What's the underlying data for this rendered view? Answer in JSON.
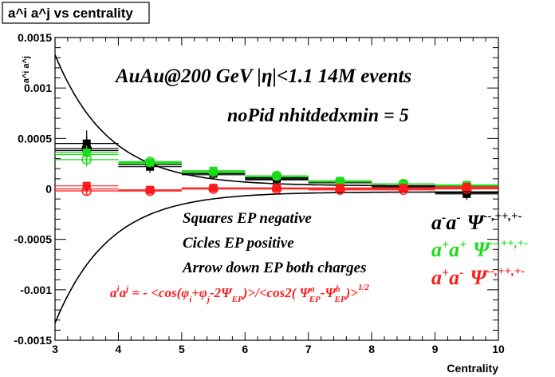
{
  "title": "a^i a^j vs centrality",
  "colors": {
    "black": "#000000",
    "green": "#1bdc1b",
    "red": "#ff1a1a",
    "frame": "#000000",
    "background": "#ffffff"
  },
  "annotations": {
    "header1": "AuAu@200 GeV |η|<1.1 14M events",
    "header2": "noPid nhitdedxmin = 5",
    "squares": "Squares EP negative",
    "circles": "Cicles EP positive",
    "arrows": "Arrow down EP both charges",
    "formula": "a^i a^j = - <cos(φ_i+φ_j-2Ψ_EP)>/<cos2(Ψ^a_EP-Ψ^b_EP)>^(1/2)"
  },
  "legend": [
    {
      "label": "a⁻a⁻ Ψ⁻⁻,⁺⁺,⁺⁻",
      "color": "#000000"
    },
    {
      "label": "a⁺a⁺ Ψ⁻⁻,⁺⁺,⁺⁻",
      "color": "#1bdc1b"
    },
    {
      "label": "a⁺a⁻ Ψ⁻⁻,⁺⁺,⁺⁻",
      "color": "#ff1a1a"
    }
  ],
  "chart_data": {
    "type": "scatter",
    "title": "a^i a^j vs centrality",
    "xlabel": "Centrality",
    "ylabel": "a^i a^j",
    "xlim": [
      3,
      10
    ],
    "ylim": [
      -0.0015,
      0.0015
    ],
    "x_ticks": [
      3,
      4,
      5,
      6,
      7,
      8,
      9,
      10
    ],
    "y_ticks": [
      -0.0015,
      -0.001,
      -0.0005,
      0,
      0.0005,
      0.001,
      0.0015
    ],
    "y_tick_labels": [
      "-0.0015",
      "-0.001",
      "-0.0005",
      "0",
      "0.0005",
      "0.001",
      "0.0015"
    ],
    "x": [
      3.5,
      4.5,
      5.5,
      6.5,
      7.5,
      8.5,
      9.5
    ],
    "series": [
      {
        "name": "a⁻a⁻ Squares EP negative",
        "color": "#000000",
        "marker": "square",
        "values": [
          0.00045,
          0.00022,
          0.00015,
          0.0001,
          6e-05,
          2e-05,
          -5e-05
        ],
        "errors": [
          0.00013,
          6e-05,
          4e-05,
          3e-05,
          3e-05,
          3e-05,
          6e-05
        ]
      },
      {
        "name": "a⁻a⁻ Cicles EP positive",
        "color": "#000000",
        "marker": "circle",
        "values": [
          0.0004,
          0.00025,
          0.00016,
          0.00011,
          7e-05,
          3e-05,
          -3e-05
        ],
        "errors": [
          0.00012,
          5e-05,
          4e-05,
          3e-05,
          3e-05,
          3e-05,
          6e-05
        ]
      },
      {
        "name": "a⁻a⁻ Arrow down EP both charges",
        "color": "#000000",
        "marker": "arrow",
        "values": [
          0.00038,
          0.00024,
          0.00014,
          9e-05,
          6e-05,
          2e-05,
          -4e-05
        ],
        "errors": [
          0.00012,
          5e-05,
          4e-05,
          3e-05,
          3e-05,
          3e-05,
          6e-05
        ]
      },
      {
        "name": "a⁺a⁺ Squares EP negative",
        "color": "#1bdc1b",
        "marker": "square",
        "values": [
          0.00036,
          0.00026,
          0.00018,
          0.00013,
          8e-05,
          5e-05,
          4e-05
        ],
        "errors": [
          7e-05,
          4e-05,
          3e-05,
          3e-05,
          3e-05,
          3e-05,
          4e-05
        ]
      },
      {
        "name": "a⁺a⁺ Cicles EP positive",
        "color": "#1bdc1b",
        "marker": "circle",
        "values": [
          0.00029,
          0.00027,
          0.00017,
          0.00013,
          7e-05,
          5e-05,
          3e-05
        ],
        "errors": [
          7e-05,
          4e-05,
          3e-05,
          3e-05,
          3e-05,
          3e-05,
          4e-05
        ]
      },
      {
        "name": "a⁺a⁺ Arrow down EP both charges",
        "color": "#1bdc1b",
        "marker": "arrow",
        "values": [
          0.00034,
          0.00025,
          0.00016,
          0.00012,
          7e-05,
          5e-05,
          3e-05
        ],
        "errors": [
          7e-05,
          4e-05,
          3e-05,
          3e-05,
          3e-05,
          3e-05,
          4e-05
        ]
      },
      {
        "name": "a⁺a⁻ Squares EP negative",
        "color": "#ff1a1a",
        "marker": "square",
        "values": [
          3e-05,
          -1e-05,
          1e-05,
          1e-05,
          1e-05,
          1e-05,
          2e-05
        ],
        "errors": [
          4e-05,
          2e-05,
          2e-05,
          2e-05,
          2e-05,
          2e-05,
          3e-05
        ]
      },
      {
        "name": "a⁺a⁻ Cicles EP positive",
        "color": "#ff1a1a",
        "marker": "circle",
        "values": [
          -2e-05,
          -2e-05,
          0.0,
          0.0,
          -1e-05,
          -1e-05,
          0.0
        ],
        "errors": [
          4e-05,
          2e-05,
          2e-05,
          2e-05,
          2e-05,
          2e-05,
          3e-05
        ]
      },
      {
        "name": "a⁺a⁻ Arrow down EP both charges",
        "color": "#ff1a1a",
        "marker": "arrow",
        "values": [
          0.0,
          -2e-05,
          0.0,
          0.0,
          0.0,
          0.0,
          1e-05
        ],
        "errors": [
          4e-05,
          2e-05,
          2e-05,
          2e-05,
          2e-05,
          2e-05,
          3e-05
        ]
      }
    ]
  }
}
